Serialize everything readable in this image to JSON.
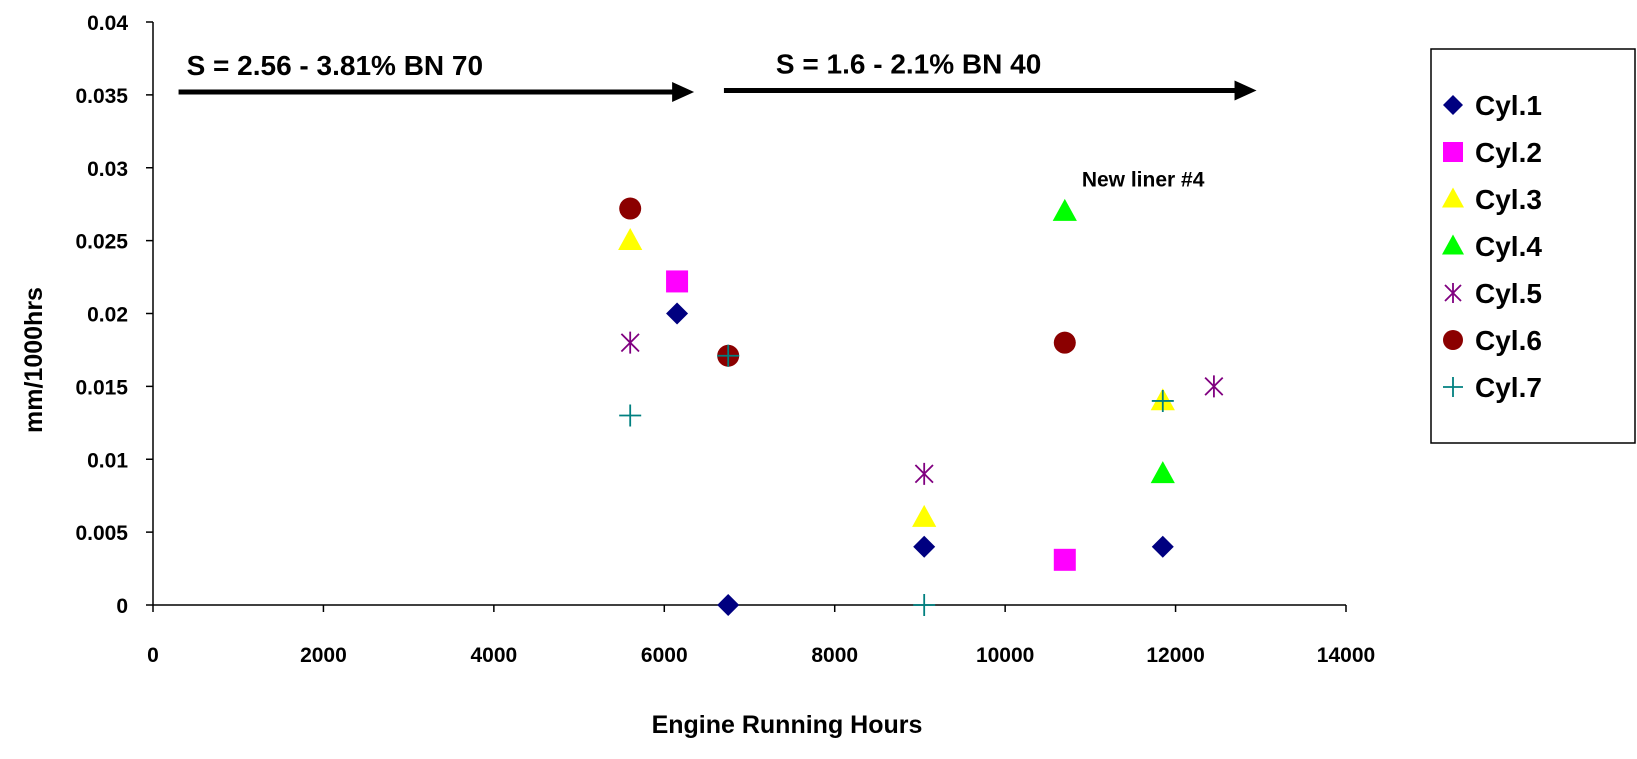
{
  "chart_data": {
    "type": "scatter",
    "title": "",
    "xlabel": "Engine Running Hours",
    "ylabel": "mm/1000hrs",
    "xlim": [
      0,
      14000
    ],
    "ylim": [
      0,
      0.04
    ],
    "x_ticks": [
      "0",
      "2000",
      "4000",
      "6000",
      "8000",
      "10000",
      "12000",
      "14000"
    ],
    "y_ticks": [
      "0",
      "0.005",
      "0.01",
      "0.015",
      "0.02",
      "0.025",
      "0.03",
      "0.035",
      "0.04"
    ],
    "grid": false,
    "legend_position": "right",
    "series": [
      {
        "name": "Cyl.1",
        "marker": "diamond",
        "color": "#000080",
        "points": [
          [
            6150,
            0.02
          ],
          [
            6750,
            0.0
          ],
          [
            9050,
            0.004
          ],
          [
            11850,
            0.004
          ]
        ]
      },
      {
        "name": "Cyl.2",
        "marker": "square",
        "color": "#ff00ff",
        "points": [
          [
            6150,
            0.0222
          ],
          [
            10700,
            0.0031
          ]
        ]
      },
      {
        "name": "Cyl.3",
        "marker": "triangle",
        "color": "#ffff00",
        "points": [
          [
            5600,
            0.025
          ],
          [
            9050,
            0.006
          ],
          [
            11850,
            0.014
          ]
        ]
      },
      {
        "name": "Cyl.4",
        "marker": "triangle",
        "color": "#00ff00",
        "points": [
          [
            10700,
            0.027
          ],
          [
            11850,
            0.009
          ]
        ]
      },
      {
        "name": "Cyl.5",
        "marker": "asterisk",
        "color": "#800080",
        "points": [
          [
            5600,
            0.018
          ],
          [
            9050,
            0.009
          ],
          [
            12450,
            0.015
          ]
        ]
      },
      {
        "name": "Cyl.6",
        "marker": "circle",
        "color": "#8b0000",
        "points": [
          [
            5600,
            0.0272
          ],
          [
            6750,
            0.0171
          ],
          [
            10700,
            0.018
          ]
        ]
      },
      {
        "name": "Cyl.7",
        "marker": "plus",
        "color": "#008080",
        "points": [
          [
            5600,
            0.013
          ],
          [
            6750,
            0.0171
          ],
          [
            9050,
            0.0
          ],
          [
            11850,
            0.014
          ]
        ]
      }
    ],
    "annotations": [
      {
        "text": "S = 2.56 - 3.81% BN 70",
        "kind": "regime-arrow",
        "x_start": 300,
        "x_end": 6350,
        "y": 0.0352
      },
      {
        "text": "S = 1.6 - 2.1% BN 40",
        "kind": "regime-arrow",
        "x_start": 6700,
        "x_end": 12950,
        "y": 0.0353
      },
      {
        "text": "New liner #4",
        "kind": "label",
        "x": 10900,
        "y": 0.0287
      }
    ]
  }
}
